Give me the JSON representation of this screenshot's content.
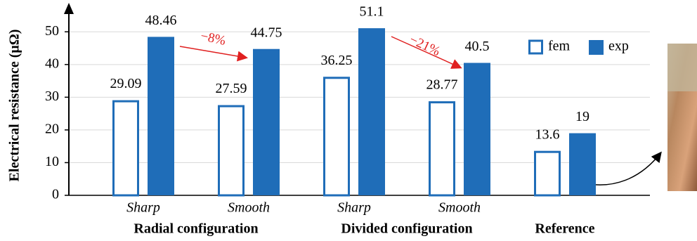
{
  "chart_data": {
    "type": "bar",
    "y_label": "Electrical resistance (μΩ)",
    "category_groups": [
      {
        "name": "Radial configuration",
        "categories": [
          "Sharp",
          "Smooth"
        ]
      },
      {
        "name": "Divided configuration",
        "categories": [
          "Sharp",
          "Smooth"
        ]
      },
      {
        "name": "Reference",
        "categories": [
          null
        ]
      }
    ],
    "series": [
      {
        "name": "fem",
        "color": "#1f6db8",
        "style": "outline",
        "values": [
          29.09,
          27.59,
          36.25,
          28.77,
          13.6
        ]
      },
      {
        "name": "exp",
        "color": "#1f6db8",
        "style": "filled",
        "values": [
          48.46,
          44.75,
          51.1,
          40.5,
          19
        ]
      }
    ],
    "annotations": [
      {
        "text": "−8%"
      },
      {
        "text": "−21%"
      }
    ],
    "ylim": [
      0,
      55
    ],
    "yticks": [
      0,
      10,
      20,
      30,
      40,
      50
    ],
    "grid": true,
    "legend": "upper right"
  }
}
